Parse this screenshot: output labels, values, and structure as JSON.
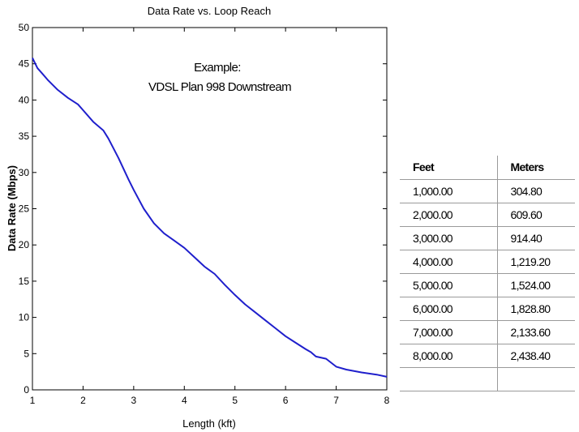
{
  "chart_data": {
    "type": "line",
    "title": "Data Rate vs. Loop Reach",
    "xlabel": "Length (kft)",
    "ylabel": "Data Rate (Mbps)",
    "xlim": [
      1,
      8
    ],
    "ylim": [
      0,
      50
    ],
    "xticks": [
      1,
      2,
      3,
      4,
      5,
      6,
      7,
      8
    ],
    "yticks": [
      0,
      5,
      10,
      15,
      20,
      25,
      30,
      35,
      40,
      45,
      50
    ],
    "grid": false,
    "line_color": "#1f1fcc",
    "annotation": [
      "Example:",
      "VDSL Plan 998 Downstream"
    ],
    "x": [
      1.0,
      1.1,
      1.2,
      1.3,
      1.5,
      1.7,
      1.9,
      2.0,
      2.2,
      2.4,
      2.5,
      2.7,
      2.9,
      3.0,
      3.2,
      3.4,
      3.6,
      3.8,
      4.0,
      4.2,
      4.4,
      4.6,
      4.8,
      5.0,
      5.2,
      5.4,
      5.6,
      5.8,
      6.0,
      6.2,
      6.4,
      6.5,
      6.6,
      6.8,
      7.0,
      7.2,
      7.5,
      7.8,
      8.0
    ],
    "y": [
      45.8,
      44.4,
      43.6,
      42.8,
      41.4,
      40.3,
      39.4,
      38.6,
      37.0,
      35.8,
      34.7,
      32.0,
      29.0,
      27.6,
      25.0,
      23.0,
      21.6,
      20.6,
      19.6,
      18.3,
      17.0,
      16.0,
      14.5,
      13.1,
      11.8,
      10.7,
      9.6,
      8.5,
      7.4,
      6.5,
      5.6,
      5.2,
      4.6,
      4.3,
      3.2,
      2.8,
      2.4,
      2.1,
      1.8
    ]
  },
  "table": {
    "headers": [
      "Feet",
      "Meters"
    ],
    "rows": [
      [
        "1,000.00",
        "304.80"
      ],
      [
        "2,000.00",
        "609.60"
      ],
      [
        "3,000.00",
        "914.40"
      ],
      [
        "4,000.00",
        "1,219.20"
      ],
      [
        "5,000.00",
        "1,524.00"
      ],
      [
        "6,000.00",
        "1,828.80"
      ],
      [
        "7,000.00",
        "2,133.60"
      ],
      [
        "8,000.00",
        "2,438.40"
      ],
      [
        "",
        ""
      ]
    ]
  }
}
